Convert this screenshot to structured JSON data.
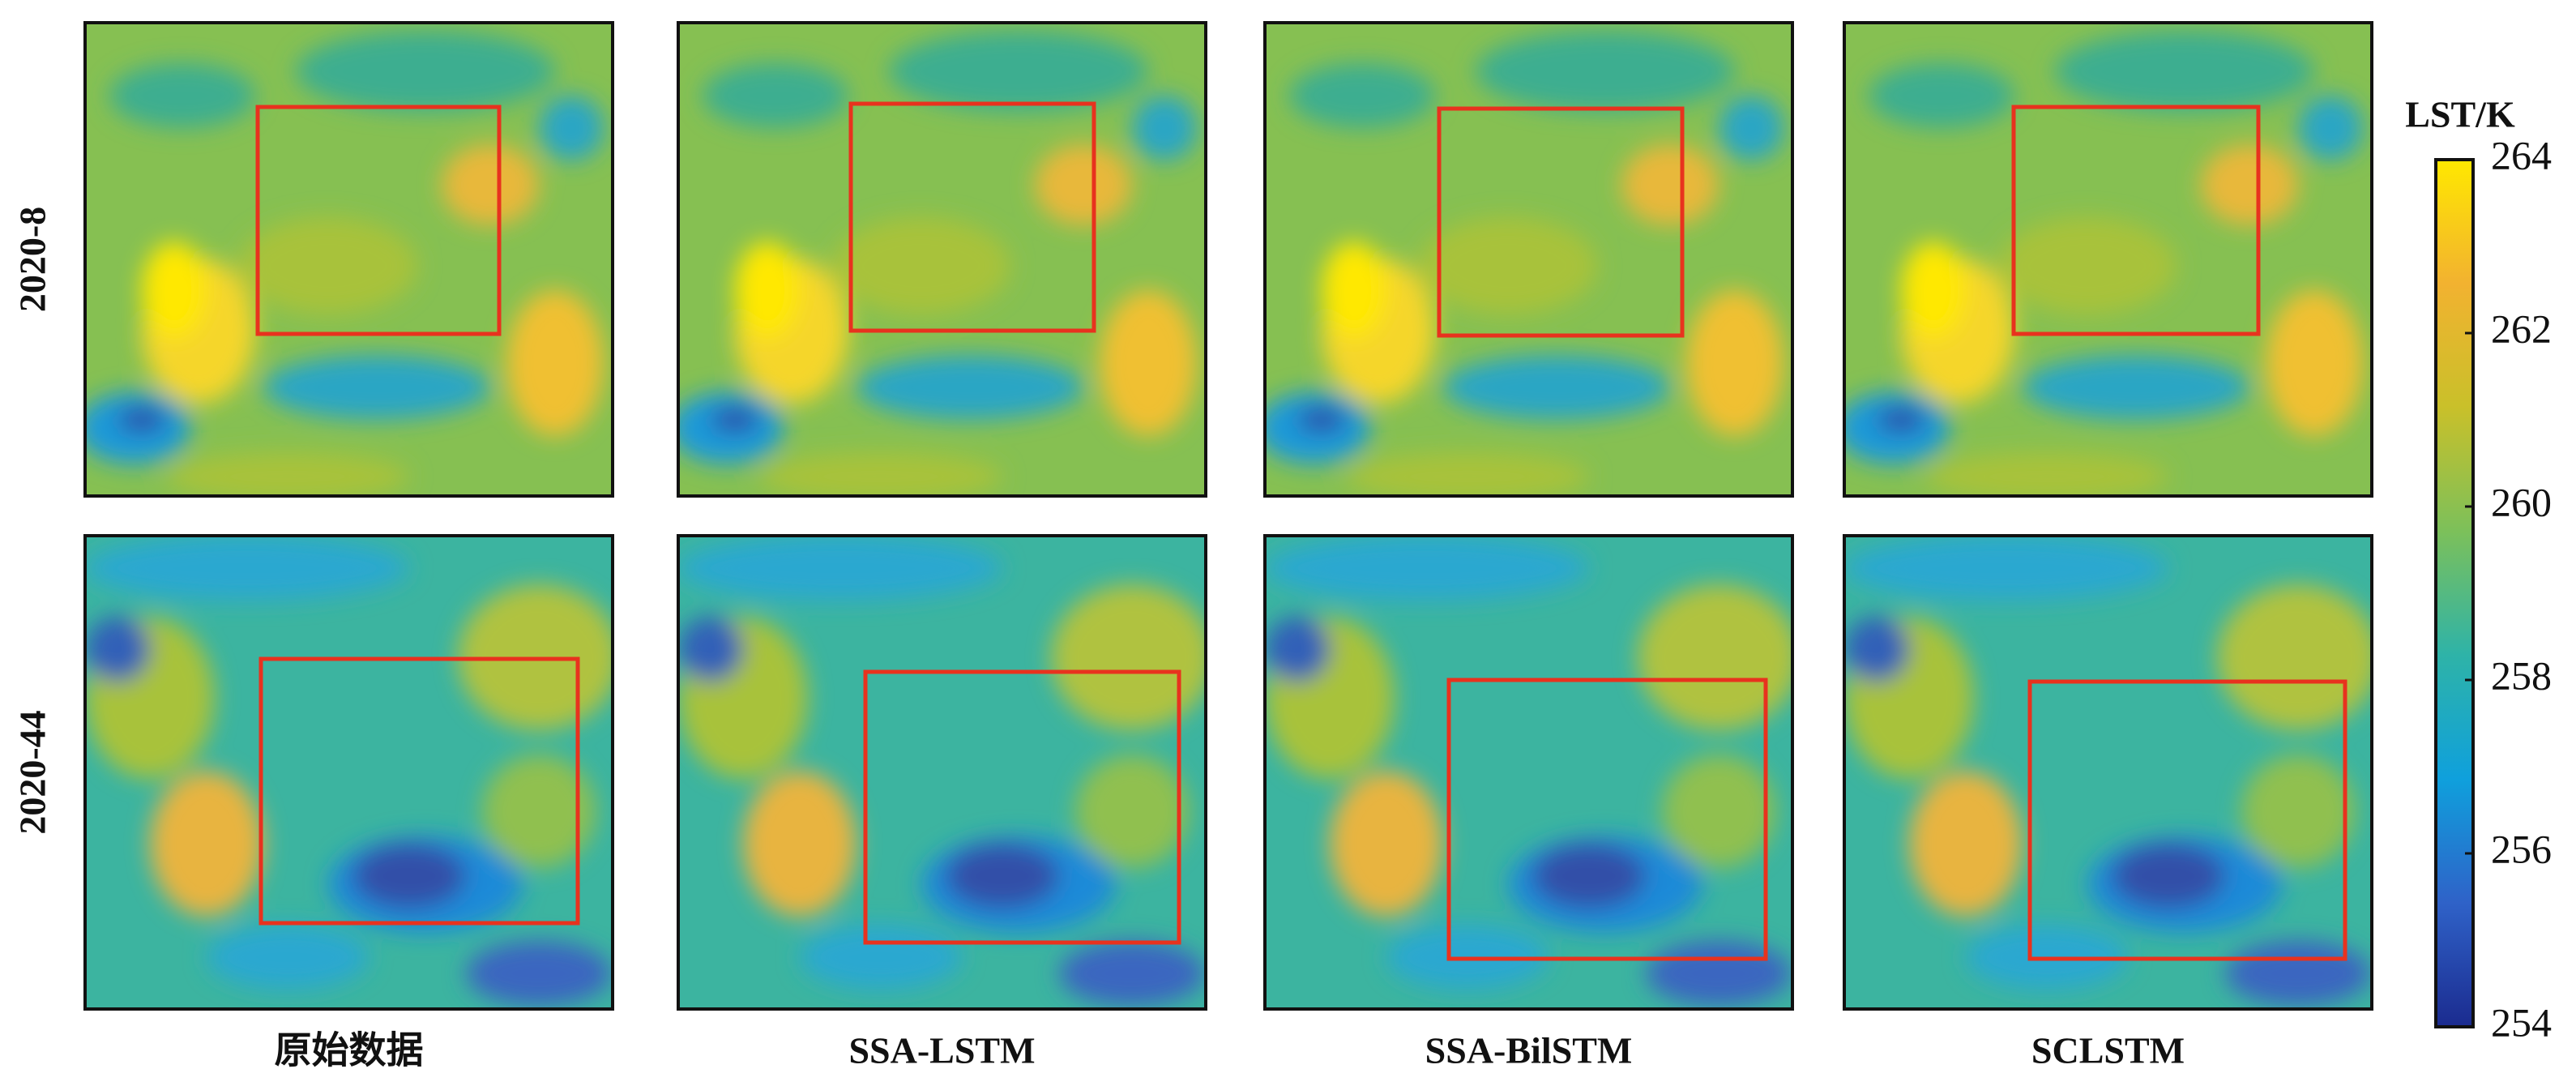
{
  "rows": [
    "2020-8",
    "2020-44"
  ],
  "columns": [
    "原始数据",
    "SSA-LSTM",
    "SSA-BilSTM",
    "SCLSTM"
  ],
  "colorbar": {
    "label": "LST/K",
    "lim": [
      254,
      264
    ],
    "ticks": [
      254,
      256,
      258,
      260,
      262,
      264
    ],
    "colormap": [
      "#1b2b8f",
      "#2f62c8",
      "#0fa0dc",
      "#2eb3a8",
      "#7cc05a",
      "#c9c02a",
      "#f2b230",
      "#ffe800"
    ]
  }
}
